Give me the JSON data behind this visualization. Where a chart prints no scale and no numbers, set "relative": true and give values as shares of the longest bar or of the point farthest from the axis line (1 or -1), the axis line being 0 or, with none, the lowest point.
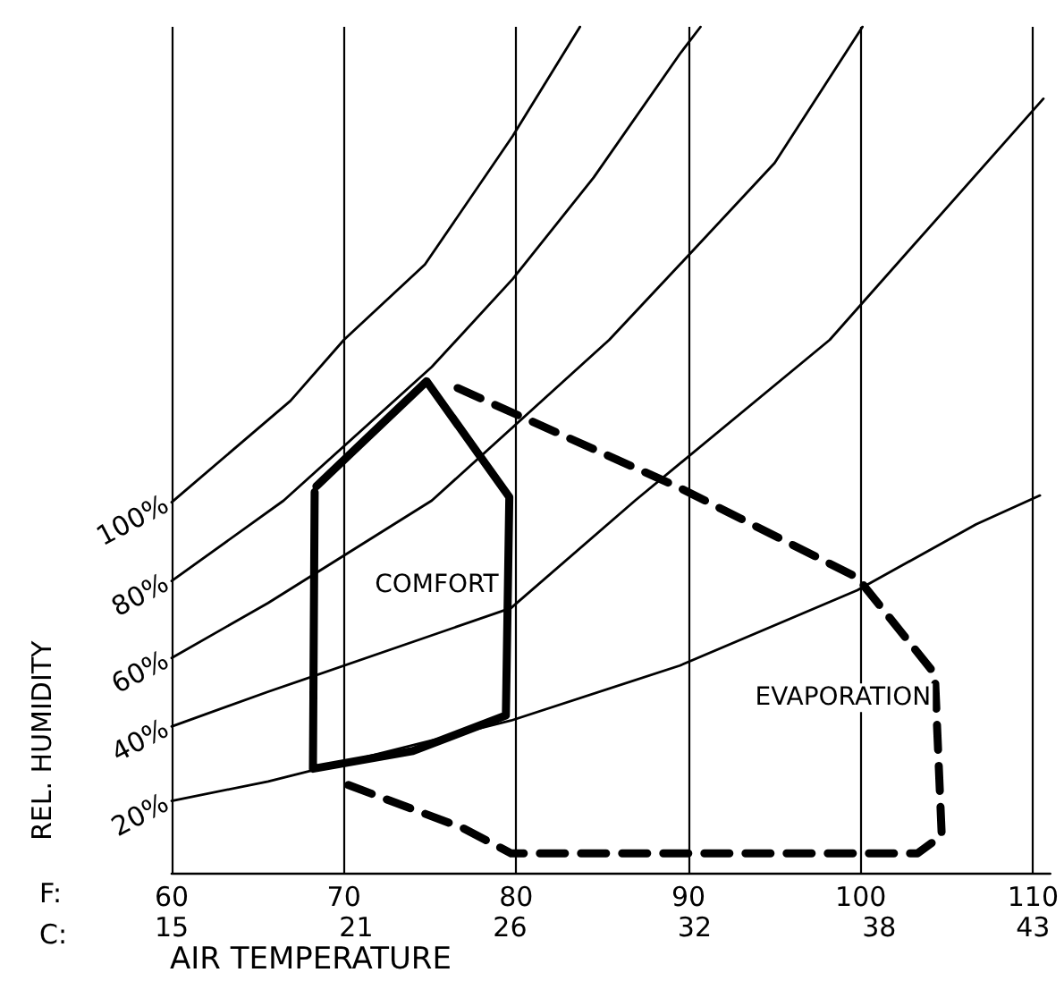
{
  "chart_data": {
    "type": "line",
    "relative": true,
    "xlabel": "AIR TEMPERATURE",
    "ylabel": "REL. HUMIDITY",
    "xlim": [
      60,
      111
    ],
    "xticks": [
      60,
      70,
      80,
      90,
      100,
      110
    ],
    "x2lim": [
      15,
      43.56
    ],
    "x2ticks": [
      15,
      21,
      26,
      32,
      38,
      43
    ],
    "grid": "x",
    "legend": false,
    "marker": "none",
    "annotations": [
      "F:",
      "C:"
    ],
    "series": [
      {
        "name": "100%",
        "color": "#000000",
        "x": [
          60,
          66.9,
          70.0,
          74.7,
          79.8,
          83.7
        ],
        "values": [
          0.438,
          0.558,
          0.63,
          0.719,
          0.871,
          1.0
        ]
      },
      {
        "name": "80%",
        "color": "#000000",
        "x": [
          60,
          66.5,
          75.1,
          79.8,
          84.5,
          89.5,
          90.7
        ],
        "values": [
          0.345,
          0.44,
          0.598,
          0.702,
          0.822,
          0.968,
          1.0
        ]
      },
      {
        "name": "60%",
        "color": "#000000",
        "x": [
          60,
          65.6,
          75.1,
          85.4,
          89.5,
          95.0,
          100.1
        ],
        "values": [
          0.254,
          0.319,
          0.44,
          0.63,
          0.719,
          0.839,
          1.0
        ]
      },
      {
        "name": "40%",
        "color": "#000000",
        "x": [
          60,
          65.6,
          79.7,
          86.9,
          98.2,
          110.6
        ],
        "values": [
          0.173,
          0.214,
          0.313,
          0.44,
          0.63,
          0.915
        ]
      },
      {
        "name": "20%",
        "color": "#000000",
        "x": [
          60,
          65.6,
          79.7,
          89.5,
          99.8,
          106.7,
          110.4
        ],
        "values": [
          0.085,
          0.108,
          0.18,
          0.245,
          0.334,
          0.412,
          0.446
        ]
      },
      {
        "name": "EVAPORATION",
        "color": "#000000",
        "line_style": "dashed",
        "x": [
          76.6,
          89.5,
          99.8,
          104.3,
          104.7,
          103.3,
          79.7,
          76.9,
          69.7
        ],
        "values": [
          0.573,
          0.455,
          0.349,
          0.235,
          0.044,
          0.023,
          0.023,
          0.053,
          0.108
        ]
      },
      {
        "name": "COMFORT",
        "color": "#000000",
        "line_style": "solid",
        "x": [
          68.4,
          74.8,
          79.6,
          79.4,
          74.0,
          68.2,
          68.3
        ],
        "values": [
          0.457,
          0.581,
          0.444,
          0.186,
          0.144,
          0.123,
          0.45
        ]
      }
    ]
  }
}
